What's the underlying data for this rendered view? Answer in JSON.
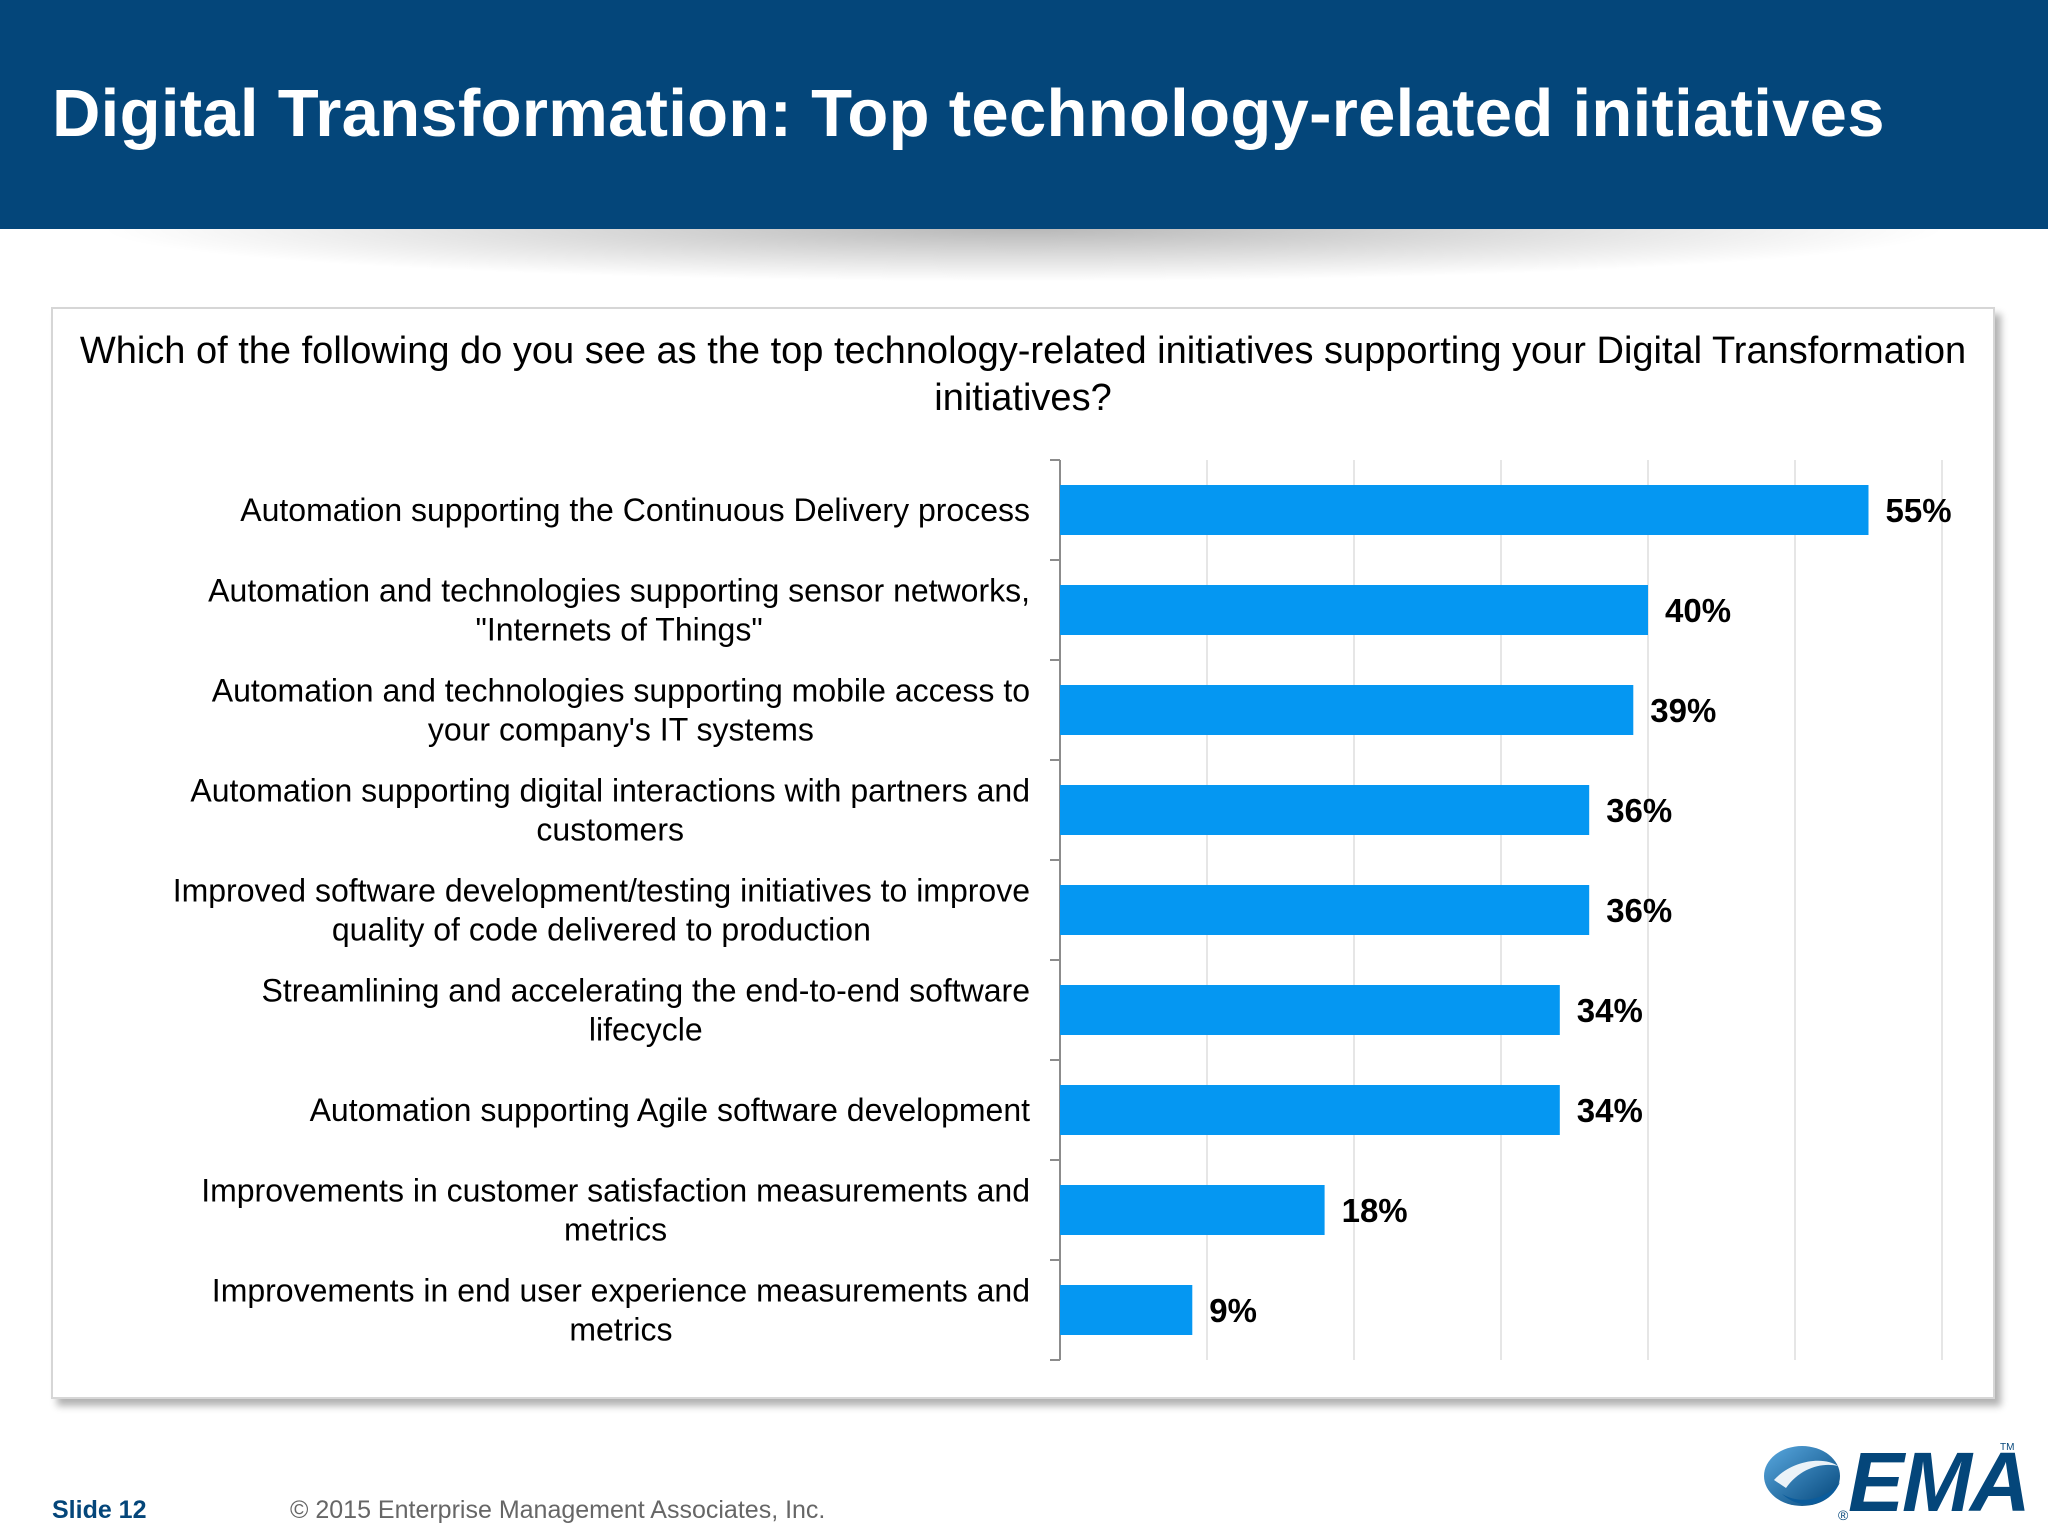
{
  "header": {
    "title": "Digital Transformation: Top technology-related initiatives"
  },
  "question": "Which of the following do you see as the top technology-related initiatives supporting your Digital Transformation initiatives?",
  "colors": {
    "header_bg": "#04467a",
    "bar": "#0597f2",
    "label_text": "#000000",
    "footer_slide": "#04467a"
  },
  "chart_data": {
    "type": "bar",
    "orientation": "horizontal",
    "categories": [
      "Automation supporting the Continuous Delivery process",
      "Automation and technologies supporting sensor networks, \"Internets of Things\"",
      "Automation and technologies supporting mobile access to your company's IT systems",
      "Automation supporting digital interactions with partners and customers",
      "Improved software development/testing initiatives to improve quality of code delivered to production",
      "Streamlining and accelerating the end-to-end software lifecycle",
      "Automation supporting Agile software development",
      "Improvements in customer satisfaction measurements and metrics",
      "Improvements in end user experience measurements and metrics"
    ],
    "category_lines": [
      [
        "Automation supporting the Continuous Delivery process"
      ],
      [
        "Automation and technologies supporting sensor networks,",
        "\"Internets of Things\""
      ],
      [
        "Automation and technologies supporting mobile access to",
        "your company's IT systems"
      ],
      [
        "Automation supporting digital interactions with partners and",
        "customers"
      ],
      [
        "Improved software development/testing initiatives to improve",
        "quality of code delivered to production"
      ],
      [
        "Streamlining and accelerating the end-to-end software",
        "lifecycle"
      ],
      [
        "Automation supporting Agile software development"
      ],
      [
        "Improvements in customer satisfaction measurements and",
        "metrics"
      ],
      [
        "Improvements in end user experience measurements and",
        "metrics"
      ]
    ],
    "values": [
      55,
      40,
      39,
      36,
      36,
      34,
      34,
      18,
      9
    ],
    "value_labels": [
      "55%",
      "40%",
      "39%",
      "36%",
      "36%",
      "34%",
      "34%",
      "18%",
      "9%"
    ],
    "unit": "%",
    "xlim": [
      0,
      60
    ],
    "grid": true,
    "legend": "none"
  },
  "footer": {
    "slide": "Slide 12",
    "copyright": "© 2015 Enterprise Management Associates, Inc."
  },
  "logo": {
    "text": "EMA",
    "tm": "TM",
    "reg": "®"
  }
}
